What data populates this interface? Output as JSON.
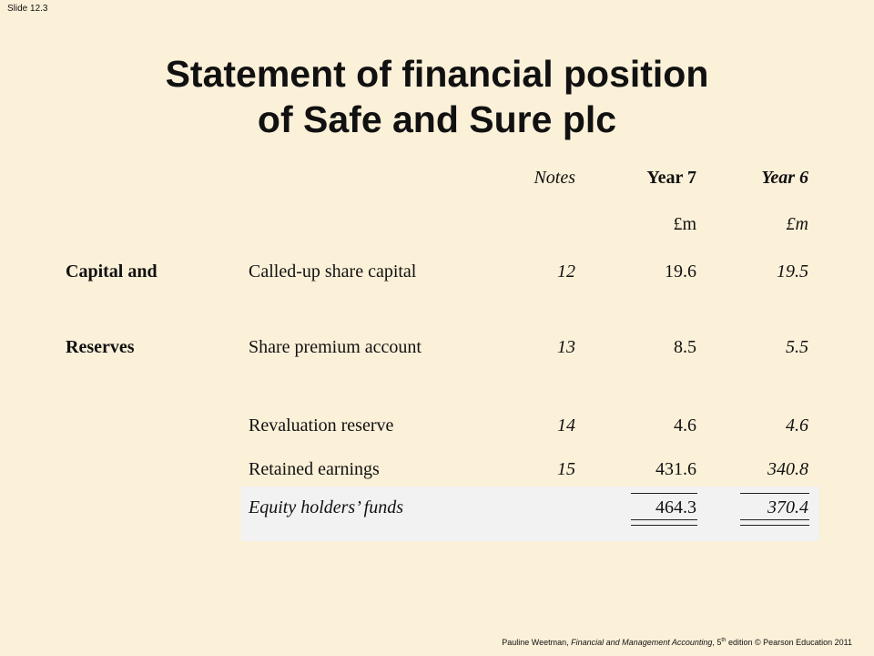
{
  "slide": {
    "number_label": "Slide 12.3",
    "title_line1": "Statement of financial position",
    "title_line2": "of Safe and Sure plc"
  },
  "table": {
    "headers": {
      "notes": "Notes",
      "year7": "Year 7",
      "year6": "Year 6"
    },
    "units": {
      "year7": "£m",
      "year6": "£m"
    },
    "section_label_line1": "Capital and",
    "section_label_line2": "Reserves",
    "rows": [
      {
        "label": "Called-up share capital",
        "note": "12",
        "year7": "19.6",
        "year6": "19.5"
      },
      {
        "label": "Share premium account",
        "note": "13",
        "year7": "8.5",
        "year6": "5.5"
      },
      {
        "label": "Revaluation reserve",
        "note": "14",
        "year7": "4.6",
        "year6": "4.6"
      },
      {
        "label": "Retained earnings",
        "note": "15",
        "year7": "431.6",
        "year6": "340.8"
      }
    ],
    "total": {
      "label": "Equity holders’ funds",
      "year7": "464.3",
      "year6": "370.4"
    }
  },
  "footer": {
    "author": "Pauline Weetman, ",
    "book": "Financial and Management Accounting",
    "edition_num": ", 5",
    "edition_sup": "th",
    "rest": " edition © Pearson Education 2011"
  }
}
